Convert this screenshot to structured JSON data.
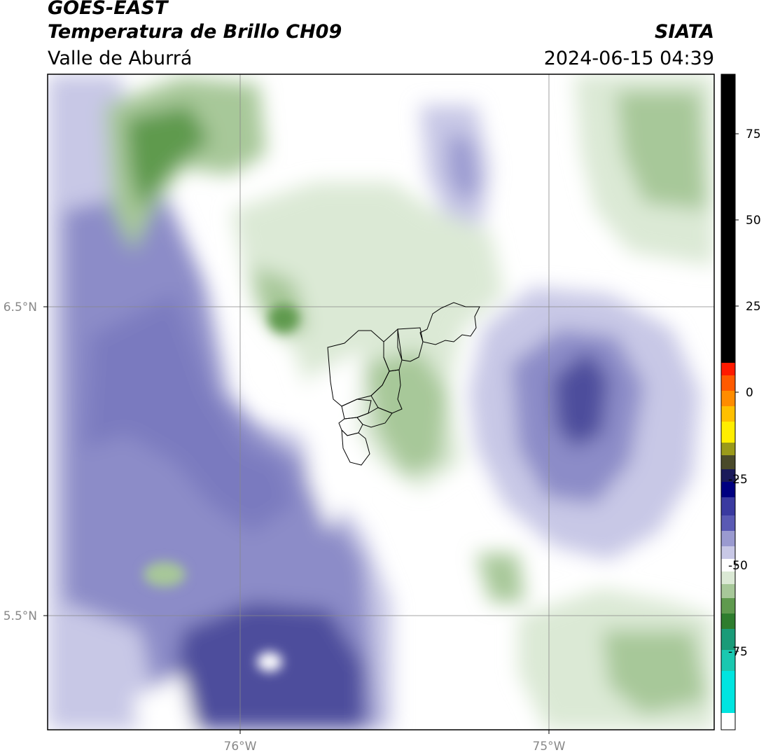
{
  "header": {
    "satellite": "GOES-EAST",
    "product": "Temperatura de Brillo CH09",
    "organization": "SIATA",
    "region": "Valle de Aburrá",
    "datetime": "2024-06-15 04:39"
  },
  "map": {
    "lat_labels": [
      "6.5°N",
      "5.5°N"
    ],
    "lon_labels": [
      "76°W",
      "75°W"
    ],
    "field_colors": {
      "white": "#ffffff",
      "green_light": "#dbe9d5",
      "green_mid": "#a7c899",
      "green_dark": "#5f9a4e",
      "purple_light": "#c8c8e6",
      "purple_mid": "#8c8cc8",
      "purple_dark": "#4d4d9c"
    }
  },
  "colorbar": {
    "tick_labels": [
      "75",
      "50",
      "25",
      "0",
      "-25",
      "-50",
      "-75"
    ],
    "colors": {
      "black": "#000000",
      "red": "#ff1a00",
      "orange": "#ff8c00",
      "yellow": "#ffee00",
      "olive": "#6b6b1a",
      "navy": "#000080",
      "purple": "#5a5ab4",
      "lavender": "#c8c8e6",
      "white": "#ffffff",
      "green": "#2e7d2e",
      "teal": "#1a9b78",
      "cyan": "#00e5e0"
    }
  }
}
